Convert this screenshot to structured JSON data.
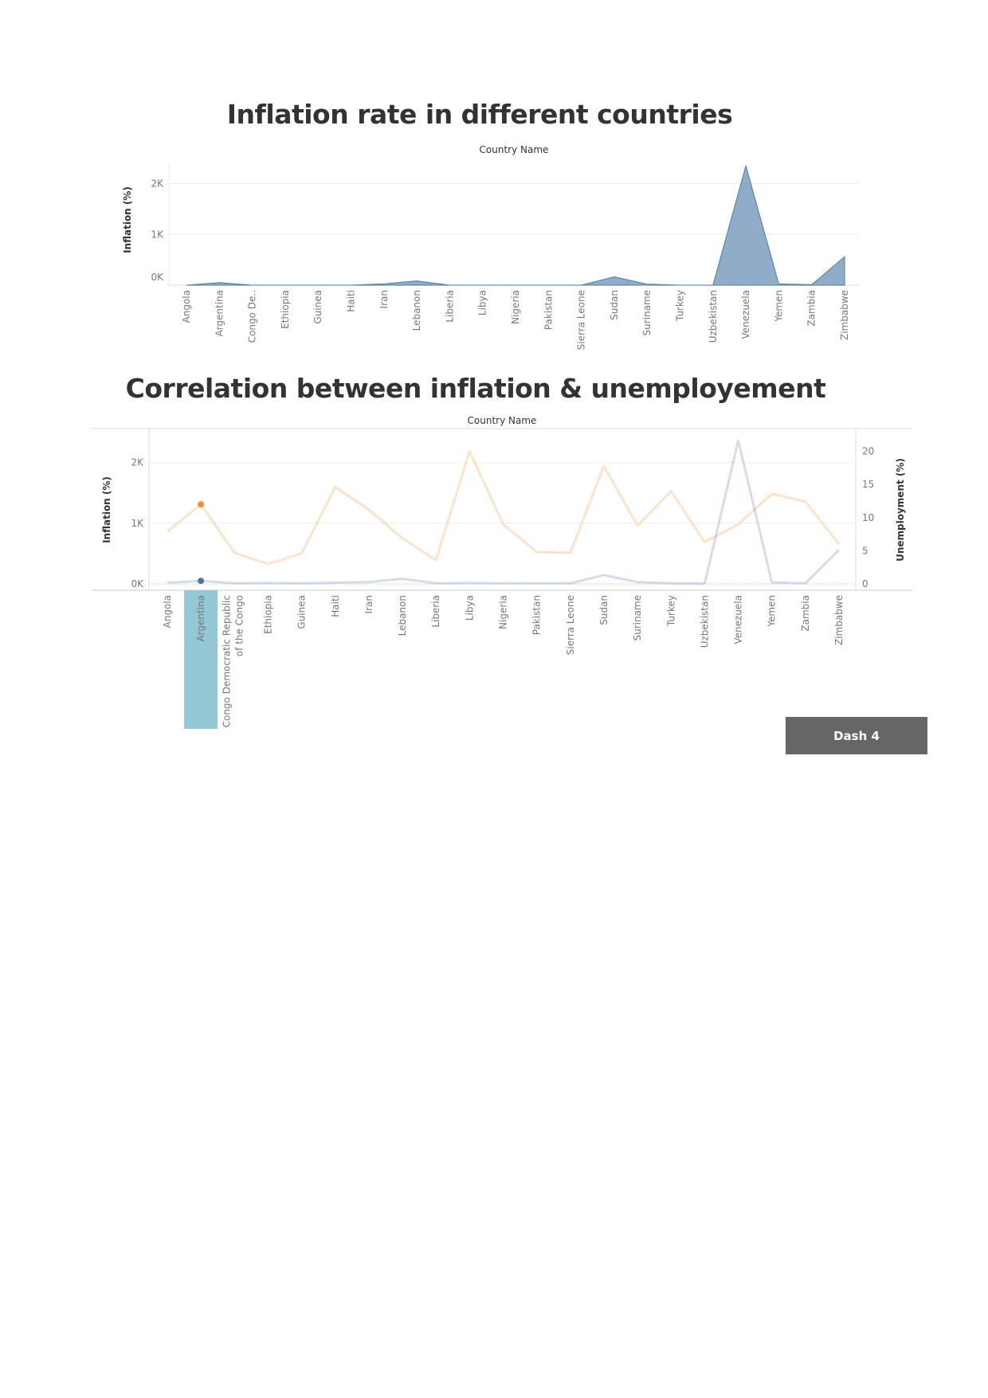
{
  "chart1": {
    "title": "Inflation rate in different countries",
    "header": "Country Name",
    "ylabel": "Inflation (%)",
    "yticks": [
      "0K",
      "1K",
      "2K"
    ]
  },
  "chart2": {
    "title": "Correlation between inflation & unemployement",
    "header": "Country Name",
    "ylabel_left": "Inflation (%)",
    "ylabel_right": "Unemployment (%)",
    "yticks_left": [
      "0K",
      "1K",
      "2K"
    ],
    "yticks_right": [
      "0",
      "5",
      "10",
      "15",
      "20"
    ]
  },
  "colors": {
    "inflation": "#4e79a7",
    "unemployment": "#f28e2b",
    "highlight": "#8fc5d3"
  },
  "dash_button": {
    "label": "Dash 4"
  },
  "chart_data": [
    {
      "type": "area",
      "title": "Inflation rate in different countries",
      "xlabel": "Country Name",
      "ylabel": "Inflation (%)",
      "categories": [
        "Angola",
        "Argentina",
        "Congo De..",
        "Ethiopia",
        "Guinea",
        "Haiti",
        "Iran",
        "Lebanon",
        "Liberia",
        "Libya",
        "Nigeria",
        "Pakistan",
        "Sierra Leone",
        "Sudan",
        "Suriname",
        "Turkey",
        "Uzbekistan",
        "Venezuela",
        "Yemen",
        "Zambia",
        "Zimbabwe"
      ],
      "series": [
        {
          "name": "Inflation (%)",
          "values": [
            0,
            50,
            0,
            0,
            0,
            0,
            25,
            85,
            0,
            0,
            0,
            0,
            0,
            165,
            20,
            0,
            0,
            2350,
            25,
            10,
            560
          ]
        }
      ],
      "ylim": [
        0,
        2400
      ],
      "grid": true
    },
    {
      "type": "line",
      "title": "Correlation between inflation & unemployement",
      "xlabel": "Country Name",
      "categories": [
        "Angola",
        "Argentina",
        "Congo Democratic Republic of the Congo",
        "Ethiopia",
        "Guinea",
        "Haiti",
        "Iran",
        "Lebanon",
        "Liberia",
        "Libya",
        "Nigeria",
        "Pakistan",
        "Sierra Leone",
        "Sudan",
        "Suriname",
        "Turkey",
        "Uzbekistan",
        "Venezuela",
        "Yemen",
        "Zambia",
        "Zimbabwe"
      ],
      "series": [
        {
          "name": "Inflation (%)",
          "axis": "left",
          "values": [
            20,
            50,
            10,
            15,
            10,
            20,
            30,
            85,
            10,
            15,
            10,
            10,
            10,
            145,
            30,
            10,
            5,
            2360,
            25,
            10,
            560
          ]
        },
        {
          "name": "Unemployment (%)",
          "axis": "right",
          "values": [
            7.9,
            12.0,
            4.7,
            3.0,
            4.6,
            14.6,
            11.2,
            6.9,
            3.6,
            20.0,
            9.0,
            4.8,
            4.7,
            17.8,
            8.8,
            14.0,
            6.3,
            9.0,
            13.6,
            12.4,
            6.0
          ]
        }
      ],
      "ylim_left": [
        0,
        2400
      ],
      "ylim_right": [
        0,
        22
      ],
      "selected": "Argentina",
      "grid": true
    }
  ]
}
